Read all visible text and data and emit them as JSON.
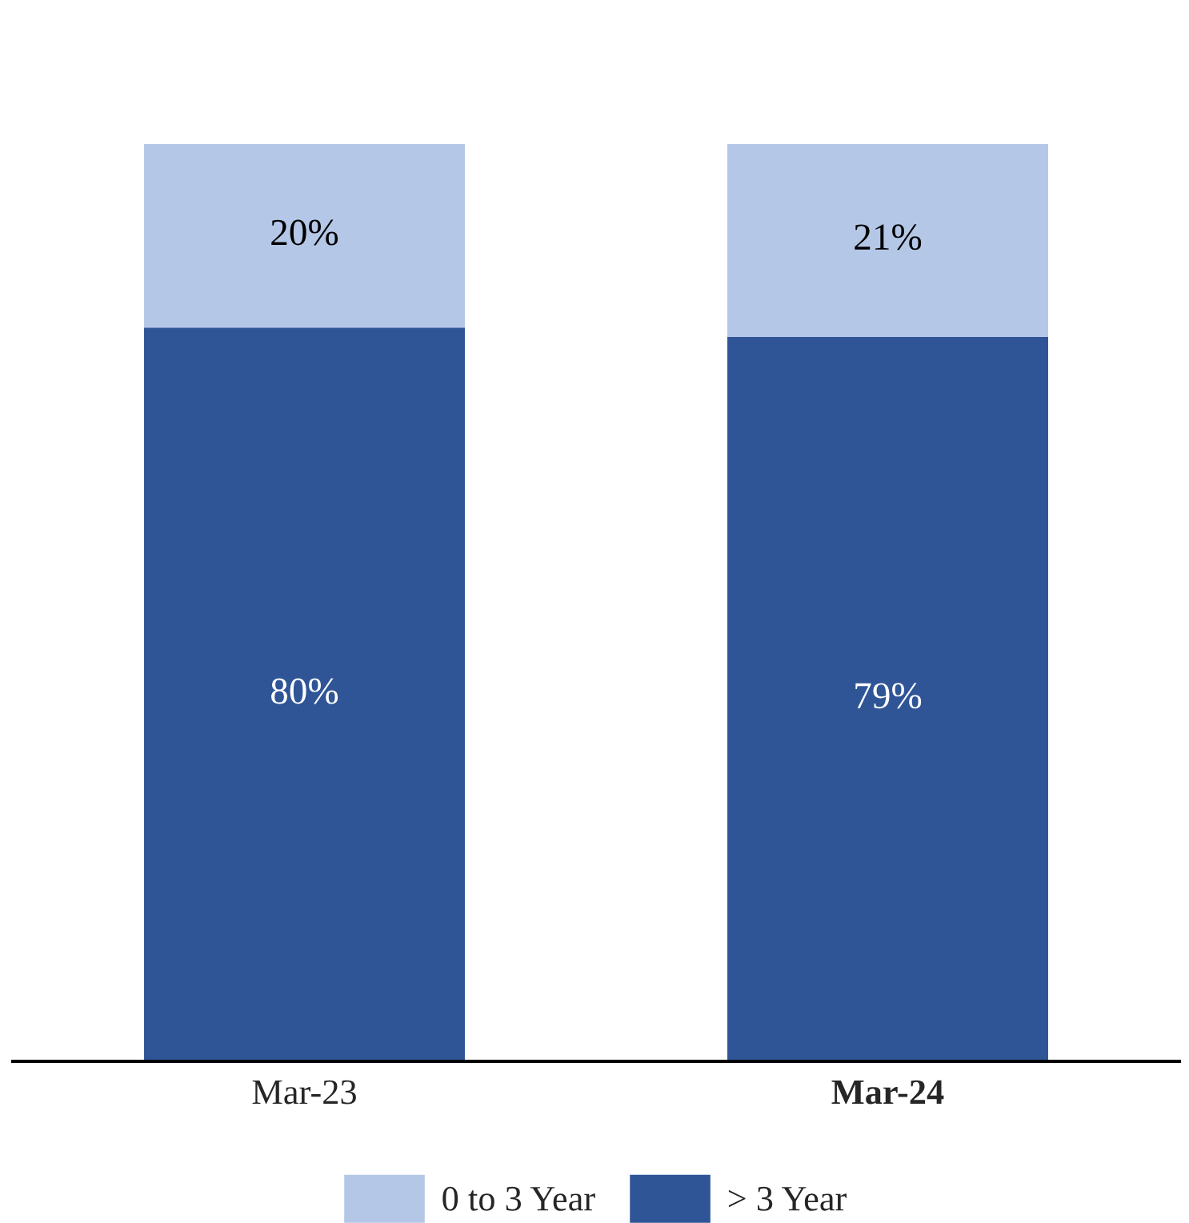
{
  "chart_data": {
    "type": "bar",
    "stacked": true,
    "categories": [
      "Mar-23",
      "Mar-24"
    ],
    "series": [
      {
        "name": "> 3 Year",
        "color": "#2f5597",
        "values": [
          80,
          79
        ],
        "value_labels": [
          "80%",
          "79%"
        ]
      },
      {
        "name": "0 to 3 Year",
        "color": "#b4c7e7",
        "values": [
          20,
          21
        ],
        "value_labels": [
          "20%",
          "21%"
        ]
      }
    ],
    "legend": "bottom",
    "grid": false
  }
}
